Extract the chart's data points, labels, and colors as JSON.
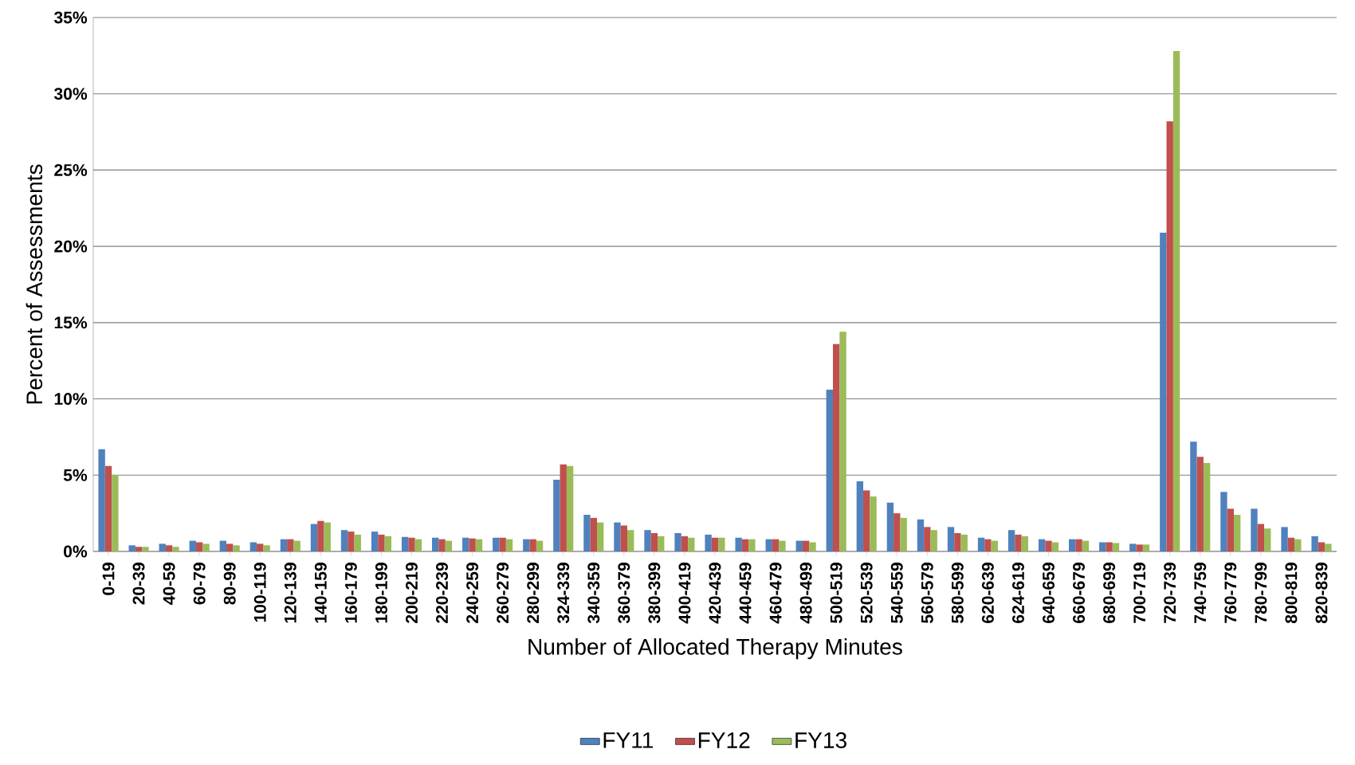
{
  "chart_data": {
    "type": "bar",
    "xlabel": "Number of Allocated Therapy Minutes",
    "ylabel": "Percent of Assessments",
    "categories": [
      "0-19",
      "20-39",
      "40-59",
      "60-79",
      "80-99",
      "100-119",
      "120-139",
      "140-159",
      "160-179",
      "180-199",
      "200-219",
      "220-239",
      "240-259",
      "260-279",
      "280-299",
      "324-339",
      "340-359",
      "360-379",
      "380-399",
      "400-419",
      "420-439",
      "440-459",
      "460-479",
      "480-499",
      "500-519",
      "520-539",
      "540-559",
      "560-579",
      "580-599",
      "620-639",
      "624-619",
      "640-659",
      "660-679",
      "680-699",
      "700-719",
      "720-739",
      "740-759",
      "760-779",
      "780-799",
      "800-819",
      "820-839"
    ],
    "series": [
      {
        "name": "FY11",
        "color": "#4f81bd",
        "values": [
          6.7,
          0.4,
          0.5,
          0.7,
          0.7,
          0.6,
          0.8,
          1.8,
          1.4,
          1.3,
          0.95,
          0.9,
          0.9,
          0.9,
          0.8,
          4.7,
          2.4,
          1.9,
          1.4,
          1.2,
          1.1,
          0.9,
          0.8,
          0.7,
          10.6,
          4.6,
          3.2,
          2.1,
          1.6,
          0.9,
          1.4,
          0.8,
          0.8,
          0.6,
          0.5,
          20.9,
          7.2,
          3.9,
          2.8,
          1.6,
          1.0
        ]
      },
      {
        "name": "FY12",
        "color": "#c0504d",
        "values": [
          5.6,
          0.3,
          0.4,
          0.6,
          0.5,
          0.5,
          0.8,
          2.0,
          1.3,
          1.1,
          0.9,
          0.8,
          0.85,
          0.9,
          0.8,
          5.7,
          2.2,
          1.7,
          1.2,
          1.0,
          0.9,
          0.8,
          0.8,
          0.7,
          13.6,
          4.0,
          2.5,
          1.6,
          1.2,
          0.8,
          1.1,
          0.7,
          0.8,
          0.6,
          0.45,
          28.2,
          6.2,
          2.8,
          1.8,
          0.9,
          0.6
        ]
      },
      {
        "name": "FY13",
        "color": "#9bbb59",
        "values": [
          5.0,
          0.3,
          0.3,
          0.5,
          0.4,
          0.4,
          0.7,
          1.9,
          1.1,
          1.0,
          0.8,
          0.7,
          0.8,
          0.8,
          0.7,
          5.6,
          1.9,
          1.4,
          1.0,
          0.9,
          0.9,
          0.8,
          0.7,
          0.6,
          14.4,
          3.6,
          2.2,
          1.4,
          1.1,
          0.7,
          1.0,
          0.6,
          0.7,
          0.55,
          0.45,
          32.8,
          5.8,
          2.4,
          1.5,
          0.8,
          0.5
        ]
      }
    ],
    "ylim": [
      0,
      35
    ],
    "yticks": [
      {
        "value": 0,
        "label": "0%"
      },
      {
        "value": 5,
        "label": "5%"
      },
      {
        "value": 10,
        "label": "10%"
      },
      {
        "value": 15,
        "label": "15%"
      },
      {
        "value": 20,
        "label": "20%"
      },
      {
        "value": 25,
        "label": "25%"
      },
      {
        "value": 30,
        "label": "30%"
      },
      {
        "value": 35,
        "label": "35%"
      }
    ],
    "grid": "y",
    "legend": "bottom"
  }
}
